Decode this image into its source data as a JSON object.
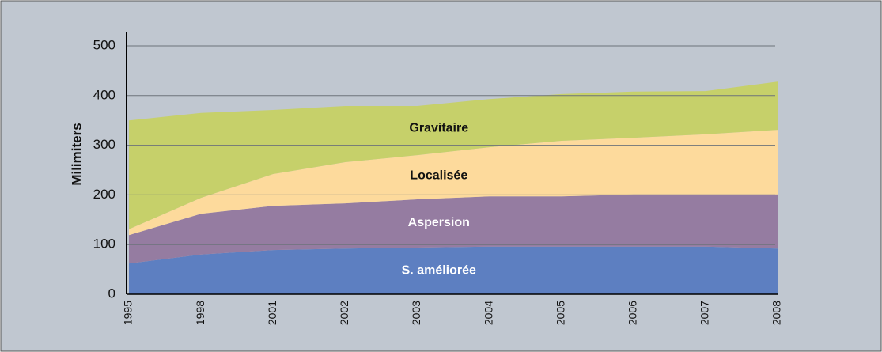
{
  "chart_data": {
    "type": "stacked_area",
    "y_label": "Milimiters",
    "categories": [
      "1995",
      "1998",
      "2001",
      "2002",
      "2003",
      "2004",
      "2005",
      "2006",
      "2007",
      "2008"
    ],
    "series": [
      {
        "name": "S. améliorée",
        "color": "#5d7fc1",
        "label_color": "#ffffff",
        "values": [
          62,
          80,
          89,
          92,
          94,
          96,
          96,
          96,
          96,
          92
        ]
      },
      {
        "name": "Aspersion",
        "color": "#957ca1",
        "label_color": "#ffffff",
        "values": [
          57,
          82,
          89,
          91,
          97,
          101,
          101,
          105,
          105,
          109
        ]
      },
      {
        "name": "Localisée",
        "color": "#fdda9c",
        "label_color": "#111111",
        "values": [
          12,
          32,
          64,
          83,
          89,
          99,
          112,
          114,
          121,
          130
        ]
      },
      {
        "name": "Gravitaire",
        "color": "#c6d06a",
        "label_color": "#111111",
        "values": [
          219,
          171,
          129,
          113,
          99,
          97,
          94,
          93,
          87,
          97
        ]
      }
    ],
    "ylim": [
      0,
      500
    ],
    "yticks": [
      0,
      100,
      200,
      300,
      400,
      500
    ],
    "grid": true
  }
}
